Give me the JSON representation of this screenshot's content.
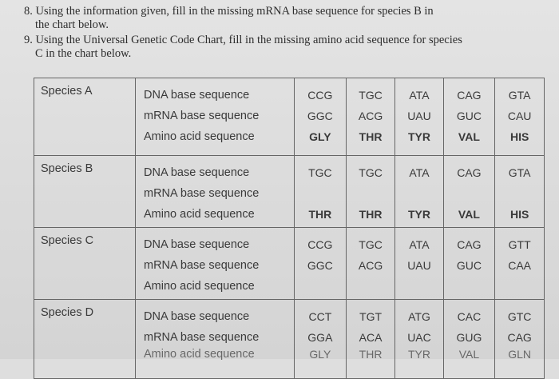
{
  "questions": {
    "q8_line1": "8. Using the information given, fill in the missing mRNA base sequence for species B in",
    "q8_line2": "the chart below.",
    "q9_line1": "9. Using the Universal Genetic Code Chart, fill in the missing amino acid sequence for species",
    "q9_line2": "C in the chart below."
  },
  "labels": {
    "dna": "DNA base sequence",
    "mrna": "mRNA base sequence",
    "amino": "Amino acid sequence"
  },
  "species": [
    {
      "name": "Species A",
      "dna": [
        "CCG",
        "TGC",
        "ATA",
        "CAG",
        "GTA"
      ],
      "mrna": [
        "GGC",
        "ACG",
        "UAU",
        "GUC",
        "CAU"
      ],
      "amino": [
        "GLY",
        "THR",
        "TYR",
        "VAL",
        "HIS"
      ]
    },
    {
      "name": "Species B",
      "dna": [
        "TGC",
        "TGC",
        "ATA",
        "CAG",
        "GTA"
      ],
      "mrna": [
        "",
        "",
        "",
        "",
        ""
      ],
      "amino": [
        "THR",
        "THR",
        "TYR",
        "VAL",
        "HIS"
      ]
    },
    {
      "name": "Species C",
      "dna": [
        "CCG",
        "TGC",
        "ATA",
        "CAG",
        "GTT"
      ],
      "mrna": [
        "GGC",
        "ACG",
        "UAU",
        "GUC",
        "CAA"
      ],
      "amino": [
        "",
        "",
        "",
        "",
        ""
      ]
    },
    {
      "name": "Species D",
      "dna": [
        "CCT",
        "TGT",
        "ATG",
        "CAC",
        "GTC"
      ],
      "mrna": [
        "GGA",
        "ACA",
        "UAC",
        "GUG",
        "CAG"
      ],
      "amino": [
        "GLY",
        "THR",
        "TYR",
        "VAL",
        "GLN"
      ]
    }
  ]
}
